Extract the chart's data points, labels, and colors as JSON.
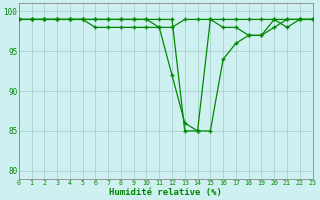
{
  "title": "",
  "xlabel": "Humidité relative (%)",
  "ylabel": "",
  "background_color": "#cff0f0",
  "grid_color": "#aed4d4",
  "line_color": "#008800",
  "marker_color": "#008800",
  "xlim": [
    0,
    23
  ],
  "ylim": [
    79,
    101
  ],
  "yticks": [
    80,
    85,
    90,
    95,
    100
  ],
  "xticks": [
    0,
    1,
    2,
    3,
    4,
    5,
    6,
    7,
    8,
    9,
    10,
    11,
    12,
    13,
    14,
    15,
    16,
    17,
    18,
    19,
    20,
    21,
    22,
    23
  ],
  "series1": [
    99,
    99,
    99,
    99,
    99,
    99,
    99,
    99,
    99,
    99,
    99,
    99,
    99,
    85,
    85,
    99,
    98,
    98,
    97,
    97,
    98,
    99,
    99,
    99
  ],
  "series2": [
    99,
    99,
    99,
    99,
    99,
    99,
    99,
    99,
    99,
    99,
    99,
    98,
    92,
    86,
    85,
    85,
    94,
    96,
    97,
    97,
    99,
    98,
    99,
    99
  ],
  "series3": [
    99,
    99,
    99,
    99,
    99,
    99,
    98,
    98,
    98,
    98,
    98,
    98,
    98,
    99,
    99,
    99,
    99,
    99,
    99,
    99,
    99,
    99,
    99,
    99
  ]
}
